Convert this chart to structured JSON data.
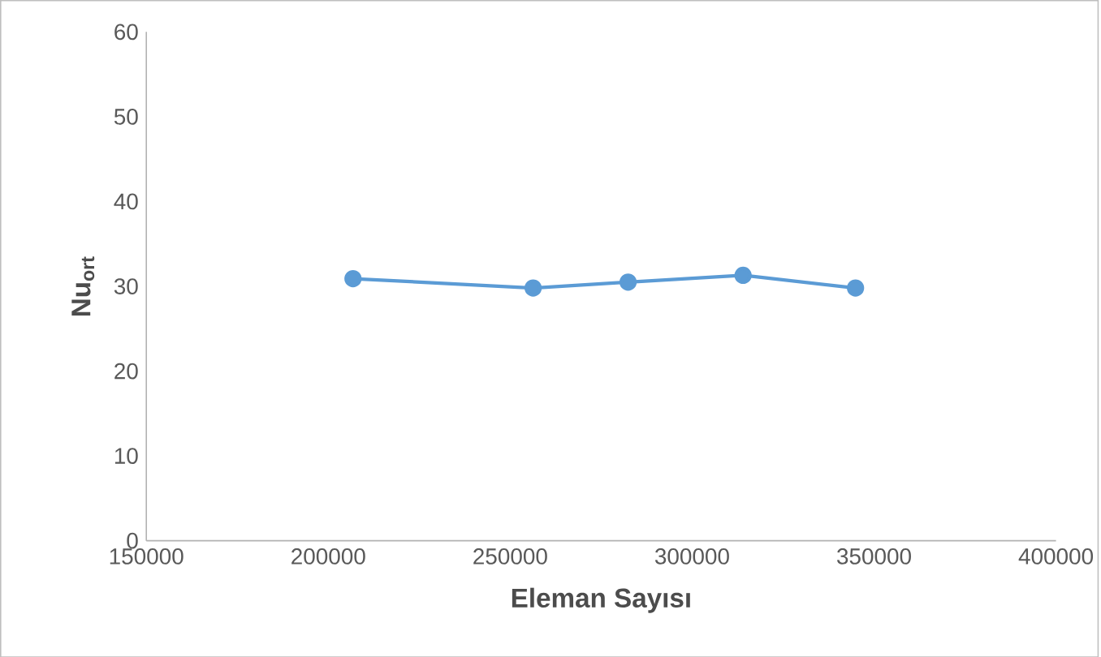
{
  "chart_data": {
    "type": "line",
    "xlabel": "Eleman Sayısı",
    "ylabel": "Nu$_{ort}$",
    "x": [
      206800,
      256300,
      282400,
      314000,
      344900
    ],
    "series": [
      {
        "color": "#5b9bd5",
        "values": [
          30.9,
          29.8,
          30.5,
          31.3,
          29.8
        ]
      }
    ],
    "xlim": [
      150000,
      400000
    ],
    "xticks": [
      150000,
      200000,
      250000,
      300000,
      350000,
      400000
    ],
    "ylim": [
      0,
      60
    ],
    "yticks": [
      0,
      10,
      20,
      30,
      40,
      50,
      60
    ],
    "marker": "circle",
    "line_style": "solid"
  }
}
